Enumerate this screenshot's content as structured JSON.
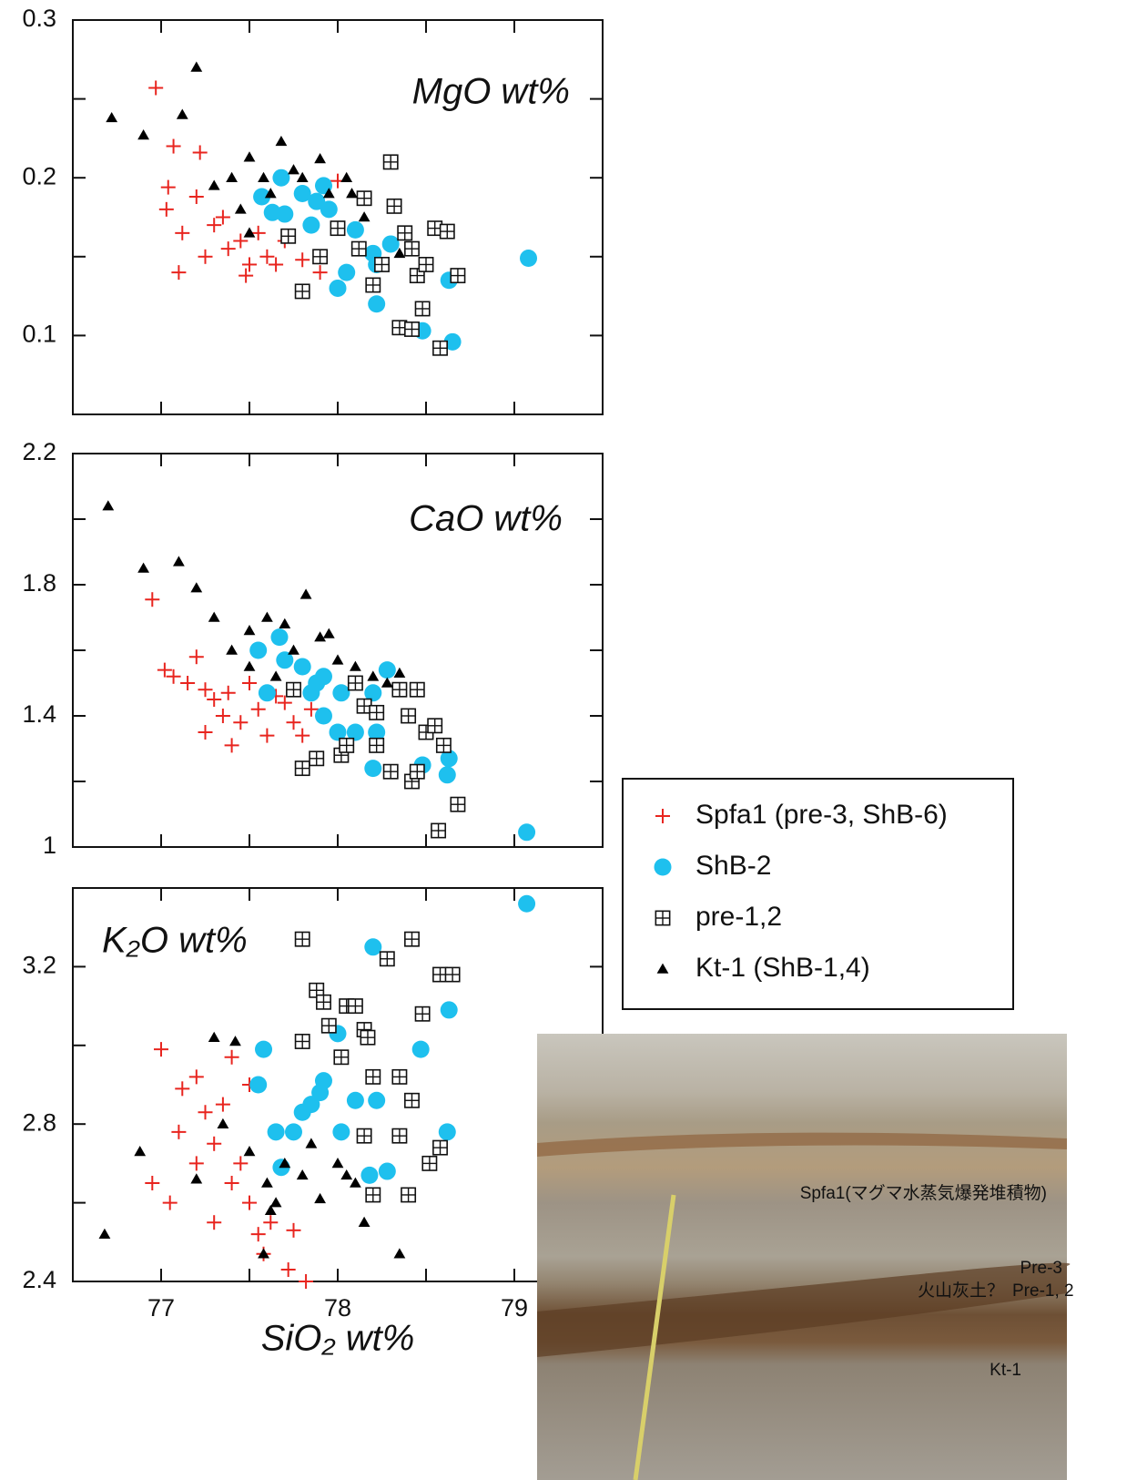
{
  "chart_data": [
    {
      "type": "scatter",
      "title": "MgO wt%",
      "ylim": [
        0.05,
        0.3
      ],
      "yticks": [
        0.1,
        0.2,
        0.3
      ],
      "minor_yticks": [
        0.15,
        0.25
      ],
      "series": [
        {
          "x": [
            76.97,
            77.07,
            77.22,
            77.04,
            77.03,
            77.12,
            77.2,
            77.3,
            77.38,
            77.45,
            77.5,
            77.1,
            77.6,
            77.7,
            77.8,
            77.25,
            77.35,
            77.55,
            77.65,
            77.48,
            78.0,
            77.9
          ],
          "values": [
            0.257,
            0.22,
            0.216,
            0.194,
            0.18,
            0.165,
            0.188,
            0.17,
            0.155,
            0.16,
            0.145,
            0.14,
            0.15,
            0.16,
            0.148,
            0.15,
            0.175,
            0.165,
            0.145,
            0.138,
            0.198,
            0.14
          ]
        },
        {
          "x": [
            77.57,
            77.68,
            77.63,
            77.8,
            77.88,
            77.92,
            77.95,
            77.85,
            78.1,
            78.2,
            78.22,
            78.3,
            78.05,
            78.0,
            78.22,
            78.48,
            78.63,
            78.65,
            79.08,
            77.7
          ],
          "values": [
            0.188,
            0.2,
            0.178,
            0.19,
            0.185,
            0.195,
            0.18,
            0.17,
            0.167,
            0.152,
            0.145,
            0.158,
            0.14,
            0.13,
            0.12,
            0.103,
            0.135,
            0.096,
            0.149,
            0.177
          ]
        },
        {
          "x": [
            78.3,
            78.15,
            78.32,
            78.38,
            78.42,
            78.55,
            78.62,
            78.68,
            78.45,
            78.5,
            78.48,
            78.35,
            78.42,
            78.58,
            78.2,
            78.25,
            78.12,
            77.8,
            77.9,
            78.0,
            77.72
          ],
          "values": [
            0.21,
            0.187,
            0.182,
            0.165,
            0.155,
            0.168,
            0.166,
            0.138,
            0.138,
            0.145,
            0.117,
            0.105,
            0.104,
            0.092,
            0.132,
            0.145,
            0.155,
            0.128,
            0.15,
            0.168,
            0.163
          ]
        },
        {
          "x": [
            76.72,
            76.9,
            77.12,
            77.2,
            77.3,
            77.4,
            77.5,
            77.58,
            77.68,
            77.75,
            77.62,
            77.9,
            77.8,
            78.05,
            78.08,
            78.15,
            77.5,
            78.35,
            77.45,
            77.95
          ],
          "values": [
            0.238,
            0.227,
            0.24,
            0.27,
            0.195,
            0.2,
            0.213,
            0.2,
            0.223,
            0.205,
            0.19,
            0.212,
            0.2,
            0.2,
            0.19,
            0.175,
            0.165,
            0.152,
            0.18,
            0.19
          ]
        }
      ]
    },
    {
      "type": "scatter",
      "title": "CaO wt%",
      "ylim": [
        1,
        2.2
      ],
      "yticks": [
        1,
        1.4,
        1.8,
        2.2
      ],
      "minor_yticks": [
        1.2,
        1.6,
        2.0
      ],
      "series": [
        {
          "x": [
            76.95,
            77.02,
            77.07,
            77.15,
            77.2,
            77.25,
            77.3,
            77.35,
            77.25,
            77.4,
            77.45,
            77.55,
            77.6,
            77.7,
            77.75,
            77.8,
            77.5,
            77.65,
            77.85,
            77.38
          ],
          "values": [
            1.755,
            1.54,
            1.52,
            1.5,
            1.58,
            1.48,
            1.45,
            1.4,
            1.35,
            1.31,
            1.38,
            1.42,
            1.34,
            1.44,
            1.38,
            1.34,
            1.5,
            1.46,
            1.42,
            1.47
          ]
        },
        {
          "x": [
            77.55,
            77.6,
            77.67,
            77.7,
            77.8,
            77.88,
            77.92,
            77.85,
            77.92,
            78.0,
            78.02,
            78.1,
            78.2,
            78.22,
            78.2,
            78.28,
            78.48,
            78.63,
            78.62,
            79.07
          ],
          "values": [
            1.6,
            1.47,
            1.64,
            1.57,
            1.55,
            1.5,
            1.52,
            1.47,
            1.4,
            1.35,
            1.47,
            1.35,
            1.47,
            1.35,
            1.24,
            1.54,
            1.25,
            1.27,
            1.22,
            1.045
          ]
        },
        {
          "x": [
            77.75,
            77.8,
            77.88,
            78.02,
            78.05,
            78.15,
            78.22,
            78.22,
            78.3,
            78.35,
            78.4,
            78.45,
            78.42,
            78.5,
            78.55,
            78.6,
            78.68,
            78.57,
            78.45,
            78.1
          ],
          "values": [
            1.48,
            1.24,
            1.27,
            1.28,
            1.31,
            1.43,
            1.41,
            1.31,
            1.23,
            1.48,
            1.4,
            1.48,
            1.2,
            1.35,
            1.37,
            1.31,
            1.13,
            1.05,
            1.23,
            1.5
          ]
        },
        {
          "x": [
            76.7,
            76.9,
            77.1,
            77.2,
            77.3,
            77.4,
            77.5,
            77.6,
            77.7,
            77.82,
            77.9,
            77.75,
            78.0,
            78.1,
            78.2,
            78.28,
            77.5,
            77.95,
            78.35,
            77.65
          ],
          "values": [
            2.04,
            1.85,
            1.87,
            1.79,
            1.7,
            1.6,
            1.66,
            1.7,
            1.68,
            1.77,
            1.64,
            1.6,
            1.57,
            1.55,
            1.52,
            1.5,
            1.55,
            1.65,
            1.53,
            1.52
          ]
        }
      ]
    },
    {
      "type": "scatter",
      "title": "K₂O wt%",
      "x_label": "SiO₂ wt%",
      "xlim": [
        76.5,
        79.5
      ],
      "xticks": [
        77,
        78,
        79
      ],
      "minor_xticks": [
        77.5,
        78.5
      ],
      "ylim": [
        2.4,
        3.4
      ],
      "yticks": [
        2.4,
        2.8,
        3.2
      ],
      "minor_yticks": [
        2.6,
        3.0
      ],
      "series": [
        {
          "x": [
            77.0,
            77.05,
            77.1,
            77.12,
            76.95,
            77.2,
            77.25,
            77.3,
            77.35,
            77.4,
            77.3,
            77.45,
            77.5,
            77.55,
            77.58,
            77.62,
            77.75,
            77.72,
            77.82,
            77.4,
            77.5,
            77.2
          ],
          "values": [
            2.99,
            2.6,
            2.78,
            2.89,
            2.65,
            2.7,
            2.83,
            2.75,
            2.85,
            2.65,
            2.55,
            2.7,
            2.6,
            2.52,
            2.47,
            2.55,
            2.53,
            2.43,
            2.4,
            2.97,
            2.9,
            2.92
          ]
        },
        {
          "x": [
            77.58,
            77.55,
            77.65,
            77.68,
            77.75,
            77.8,
            77.85,
            77.9,
            77.92,
            78.0,
            78.02,
            78.1,
            78.18,
            78.2,
            78.22,
            78.28,
            78.47,
            78.63,
            78.62,
            79.07
          ],
          "values": [
            2.99,
            2.9,
            2.78,
            2.69,
            2.78,
            2.83,
            2.85,
            2.88,
            2.91,
            3.03,
            2.78,
            2.86,
            2.67,
            3.25,
            2.86,
            2.68,
            2.99,
            3.09,
            2.78,
            3.36
          ]
        },
        {
          "x": [
            77.8,
            77.88,
            77.92,
            77.8,
            77.95,
            78.05,
            78.1,
            78.15,
            78.17,
            78.02,
            78.2,
            78.35,
            78.28,
            78.42,
            78.48,
            78.58,
            78.65,
            78.42,
            78.52,
            78.58,
            78.4,
            78.2,
            78.15,
            78.35
          ],
          "values": [
            3.27,
            3.14,
            3.11,
            3.01,
            3.05,
            3.1,
            3.1,
            3.04,
            3.02,
            2.97,
            2.92,
            2.92,
            3.22,
            3.27,
            3.08,
            3.18,
            3.18,
            2.86,
            2.7,
            2.74,
            2.62,
            2.62,
            2.77,
            2.77
          ]
        },
        {
          "x": [
            76.68,
            76.88,
            77.2,
            77.3,
            77.42,
            77.35,
            77.5,
            77.6,
            77.62,
            77.65,
            77.7,
            77.8,
            77.85,
            77.9,
            78.0,
            78.1,
            78.15,
            78.35,
            77.58,
            78.05
          ],
          "values": [
            2.52,
            2.73,
            2.66,
            3.02,
            3.01,
            2.8,
            2.73,
            2.65,
            2.58,
            2.6,
            2.7,
            2.67,
            2.75,
            2.61,
            2.7,
            2.65,
            2.55,
            2.47,
            2.47,
            2.67
          ]
        }
      ]
    }
  ],
  "legend": {
    "entries": [
      {
        "name": "Spfa1 (pre-3, ShB-6)",
        "color": "#e8251f",
        "marker": "plus"
      },
      {
        "name": "ShB-2",
        "color": "#1ec0ee",
        "marker": "circle"
      },
      {
        "name": "pre-1,2",
        "color": "#111111",
        "marker": "boxplus"
      },
      {
        "name": "Kt-1 (ShB-1,4)",
        "color": "#000000",
        "marker": "triangle"
      }
    ]
  },
  "photo": {
    "labels": [
      "Spfa1(マグマ水蒸気爆発堆積物)",
      "Pre-3",
      "火山灰土？",
      "Pre-1, 2",
      "Kt-1"
    ]
  }
}
